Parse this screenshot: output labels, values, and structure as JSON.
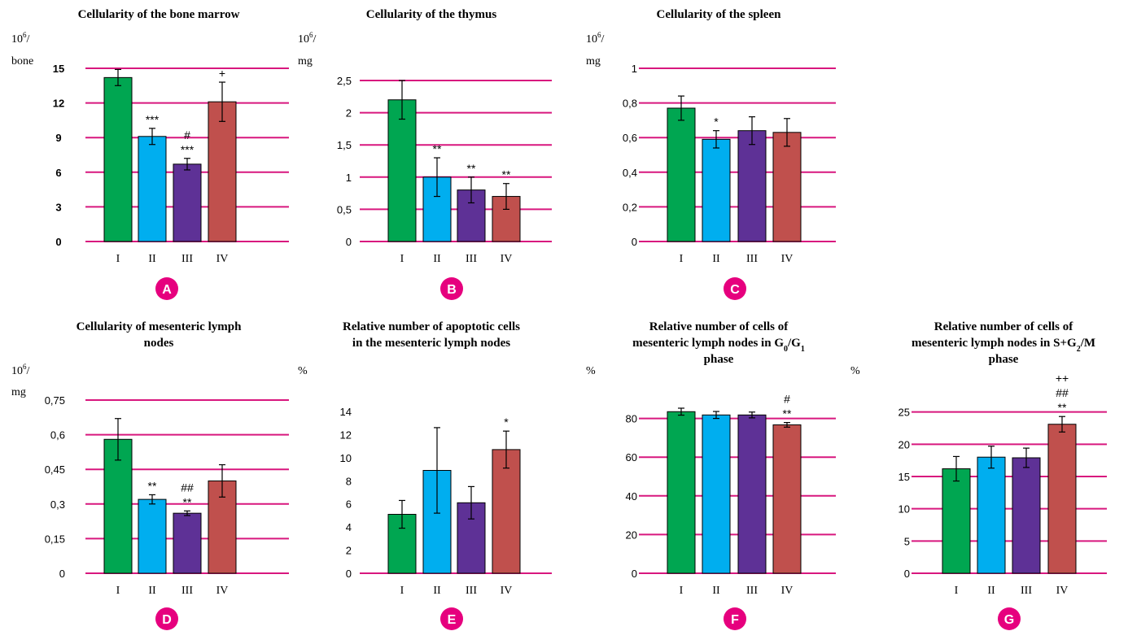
{
  "colors": {
    "gridline": "#d8177e",
    "panel_badge": "#e6007e",
    "bar_I": "#00a651",
    "bar_II": "#00aeef",
    "bar_III": "#5e3196",
    "bar_IV": "#c0504d"
  },
  "chart_data": [
    {
      "id": "A",
      "type": "bar",
      "title": [
        "Cellularity of the bone marrow"
      ],
      "unit": [
        "10",
        "6",
        "/",
        "bone"
      ],
      "categories": [
        "I",
        "II",
        "III",
        "IV"
      ],
      "values": [
        14.2,
        9.1,
        6.7,
        12.1
      ],
      "errors": [
        0.7,
        0.7,
        0.5,
        1.7
      ],
      "annotations": [
        [],
        [
          "***"
        ],
        [
          "***",
          "#"
        ],
        [
          "+"
        ]
      ],
      "yticks": [
        "0",
        "3",
        "6",
        "9",
        "12",
        "15"
      ],
      "ylim": [
        0,
        15
      ],
      "tick_style": "bold",
      "grid": true,
      "panel_label": "A"
    },
    {
      "id": "B",
      "type": "bar",
      "title": [
        "Cellularity of the thymus"
      ],
      "unit": [
        "10",
        "6",
        "/",
        "mg"
      ],
      "categories": [
        "I",
        "II",
        "III",
        "IV"
      ],
      "values": [
        2.2,
        1.0,
        0.8,
        0.7
      ],
      "errors": [
        0.3,
        0.3,
        0.2,
        0.2
      ],
      "annotations": [
        [],
        [
          "**"
        ],
        [
          "**"
        ],
        [
          "**"
        ]
      ],
      "yticks": [
        "0",
        "0,5",
        "1",
        "1,5",
        "2",
        "2,5"
      ],
      "ylim": [
        0,
        2.5
      ],
      "tick_style": "normal",
      "grid": true,
      "panel_label": "B"
    },
    {
      "id": "C",
      "type": "bar",
      "title": [
        "Cellularity of the spleen"
      ],
      "unit": [
        "10",
        "6",
        "/",
        "mg"
      ],
      "categories": [
        "I",
        "II",
        "III",
        "IV"
      ],
      "values": [
        0.77,
        0.59,
        0.64,
        0.63
      ],
      "errors": [
        0.07,
        0.05,
        0.08,
        0.08
      ],
      "annotations": [
        [],
        [
          "*"
        ],
        [],
        []
      ],
      "yticks": [
        "0",
        "0,2",
        "0,4",
        "0,6",
        "0,8",
        "1"
      ],
      "ylim": [
        0,
        1
      ],
      "tick_style": "normal",
      "grid": true,
      "panel_label": "C"
    },
    {
      "id": "D",
      "type": "bar",
      "title": [
        "Cellularity of mesenteric lymph",
        "nodes"
      ],
      "unit": [
        "10",
        "6",
        "/",
        "mg"
      ],
      "categories": [
        "I",
        "II",
        "III",
        "IV"
      ],
      "values": [
        0.58,
        0.32,
        0.26,
        0.4
      ],
      "errors": [
        0.09,
        0.02,
        0.01,
        0.07
      ],
      "annotations": [
        [],
        [
          "**"
        ],
        [
          "**",
          "##"
        ],
        []
      ],
      "yticks": [
        "0",
        "0,15",
        "0,3",
        "0,45",
        "0,6",
        "0,75"
      ],
      "ylim": [
        0,
        0.75
      ],
      "tick_style": "normal",
      "grid": true,
      "panel_label": "D"
    },
    {
      "id": "E",
      "type": "bar",
      "title": [
        "Relative number of apoptotic cells",
        "in the mesenteric lymph nodes"
      ],
      "unit": [
        "%"
      ],
      "categories": [
        "I",
        "II",
        "III",
        "IV"
      ],
      "values": [
        5.1,
        8.9,
        6.1,
        10.7
      ],
      "errors": [
        1.2,
        3.7,
        1.4,
        1.6
      ],
      "annotations": [
        [],
        [],
        [],
        [
          "*"
        ]
      ],
      "yticks": [
        "0",
        "2",
        "4",
        "6",
        "8",
        "10",
        "12",
        "14"
      ],
      "ylim": [
        0,
        14
      ],
      "tick_style": "normal",
      "grid": false,
      "panel_label": "E"
    },
    {
      "id": "F",
      "type": "bar",
      "title": [
        "Relative number of cells of",
        "mesenteric lymph nodes in G0/G1",
        "phase"
      ],
      "unit": [
        "%"
      ],
      "categories": [
        "I",
        "II",
        "III",
        "IV"
      ],
      "values": [
        83.5,
        81.8,
        81.8,
        76.7
      ],
      "errors": [
        1.8,
        1.8,
        1.5,
        1.2
      ],
      "annotations": [
        [],
        [],
        [],
        [
          "**",
          "#"
        ]
      ],
      "yticks": [
        "0",
        "20",
        "40",
        "60",
        "80"
      ],
      "ylim": [
        0,
        100
      ],
      "tick_style": "normal",
      "grid": true,
      "panel_label": "F"
    },
    {
      "id": "G",
      "type": "bar",
      "title": [
        "Relative number of cells of",
        "mesenteric lymph nodes in S+G2/M",
        "phase"
      ],
      "unit": [
        "%"
      ],
      "categories": [
        "I",
        "II",
        "III",
        "IV"
      ],
      "values": [
        16.2,
        18.0,
        17.9,
        23.1
      ],
      "errors": [
        1.9,
        1.7,
        1.5,
        1.2
      ],
      "annotations": [
        [],
        [],
        [],
        [
          "**",
          "##",
          "++"
        ]
      ],
      "yticks": [
        "0",
        "5",
        "10",
        "15",
        "20",
        "25"
      ],
      "ylim": [
        0,
        30
      ],
      "tick_style": "normal",
      "grid": true,
      "panel_label": "G"
    }
  ]
}
